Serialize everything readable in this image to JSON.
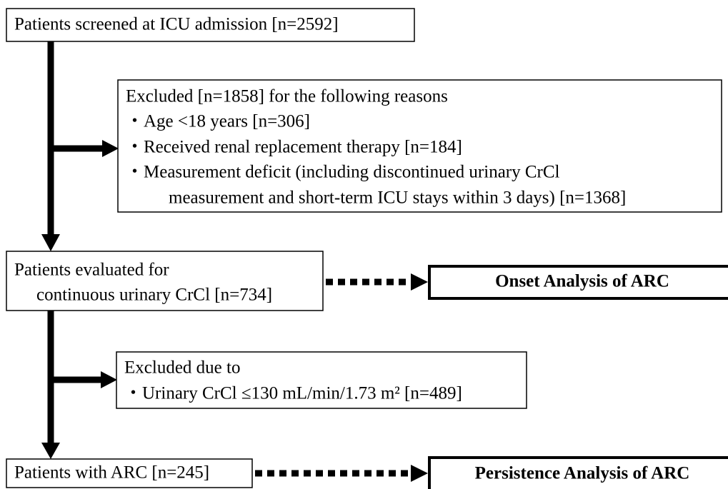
{
  "nodes": [
    {
      "lines": [
        "Patients screened at ICU admission [n=2592]"
      ]
    },
    {
      "lines": [
        "Excluded [n=1858] for the following reasons",
        "・Age <18 years [n=306]",
        "・Received renal replacement therapy [n=184]",
        "・Measurement deficit (including discontinued urinary CrCl",
        "measurement and short-term ICU stays within 3 days) [n=1368]"
      ]
    },
    {
      "lines": [
        "Patients evaluated for",
        "continuous urinary CrCl [n=734]"
      ]
    },
    {
      "lines": [
        "Onset Analysis of ARC"
      ]
    },
    {
      "lines": [
        "Excluded due to",
        "・Urinary CrCl ≤130 mL/min/1.73 m² [n=489]"
      ]
    },
    {
      "lines": [
        "Patients with ARC [n=245]"
      ]
    },
    {
      "lines": [
        "Persistence Analysis of ARC"
      ]
    }
  ]
}
